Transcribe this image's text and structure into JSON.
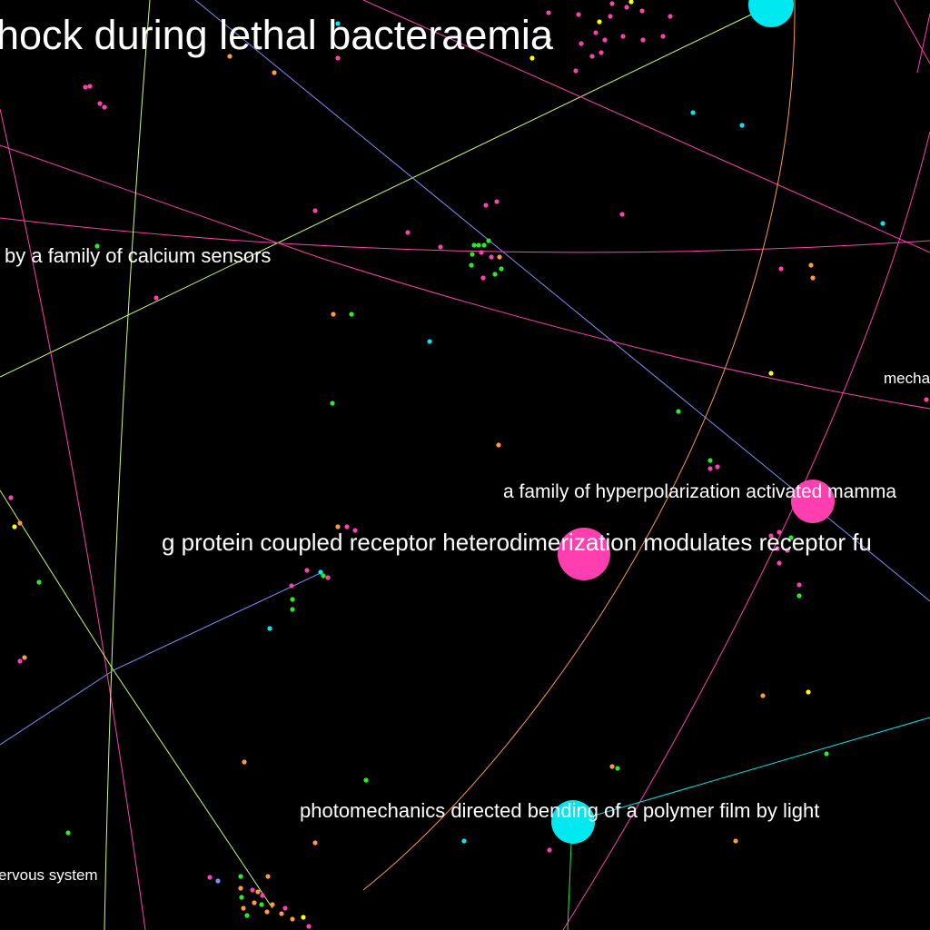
{
  "colors": {
    "background": "#000000",
    "pink": "#ff3fb0",
    "cyan": "#00e8f0",
    "green": "#22ee22",
    "orange": "#ff9944",
    "yellow": "#ffff00",
    "lime": "#ccff66",
    "blue": "#7f8fff",
    "label": "#ffffff"
  },
  "labels": {
    "bacteraemia": "hock during lethal bacteraemia",
    "calcium": "by a family of calcium sensors",
    "mecha": "mecha",
    "hyperpolarization": "a family of hyperpolarization activated mamma",
    "gprotein": "g protein coupled receptor heterodimerization modulates receptor fu",
    "photomechanics": "photomechanics directed bending of a polymer film by light",
    "nervous": "ervous system"
  }
}
